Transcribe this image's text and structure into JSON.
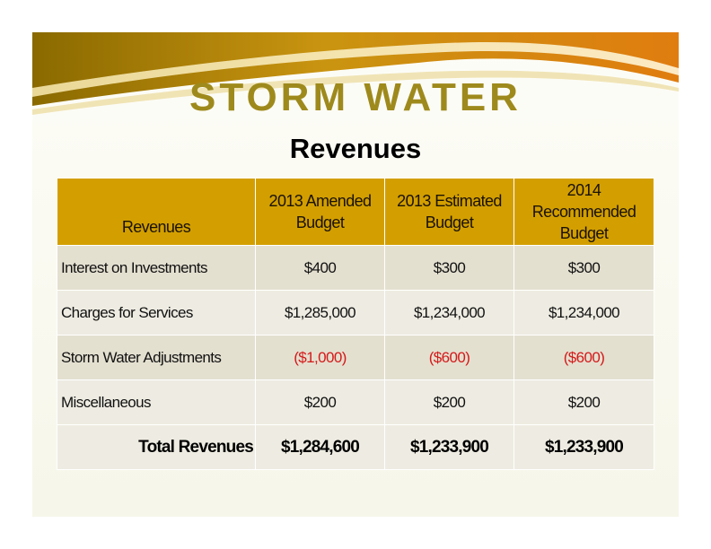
{
  "slide": {
    "title": "STORM WATER",
    "subtitle": "Revenues"
  },
  "colors": {
    "title_gold": "#9e8a1c",
    "header_fill": "#d39f00",
    "row_alt_1": "#e4e0d0",
    "row_alt_2": "#eeece2",
    "negative_red": "#d31a1a"
  },
  "table": {
    "headers": [
      "Revenues",
      "2013 Amended Budget",
      "2013 Estimated Budget",
      "2014 Recommended Budget"
    ],
    "rows": [
      {
        "label": "Interest on Investments",
        "amended_2013": "$400",
        "estimated_2013": "$300",
        "recommended_2014": "$300"
      },
      {
        "label": "Charges for Services",
        "amended_2013": "$1,285,000",
        "estimated_2013": "$1,234,000",
        "recommended_2014": "$1,234,000"
      },
      {
        "label": "Storm Water Adjustments",
        "amended_2013": "($1,000)",
        "estimated_2013": "($600)",
        "recommended_2014": "($600)"
      },
      {
        "label": "Miscellaneous",
        "amended_2013": "$200",
        "estimated_2013": "$200",
        "recommended_2014": "$200"
      }
    ],
    "total": {
      "label": "Total Revenues",
      "amended_2013": "$1,284,600",
      "estimated_2013": "$1,233,900",
      "recommended_2014": "$1,233,900"
    }
  }
}
